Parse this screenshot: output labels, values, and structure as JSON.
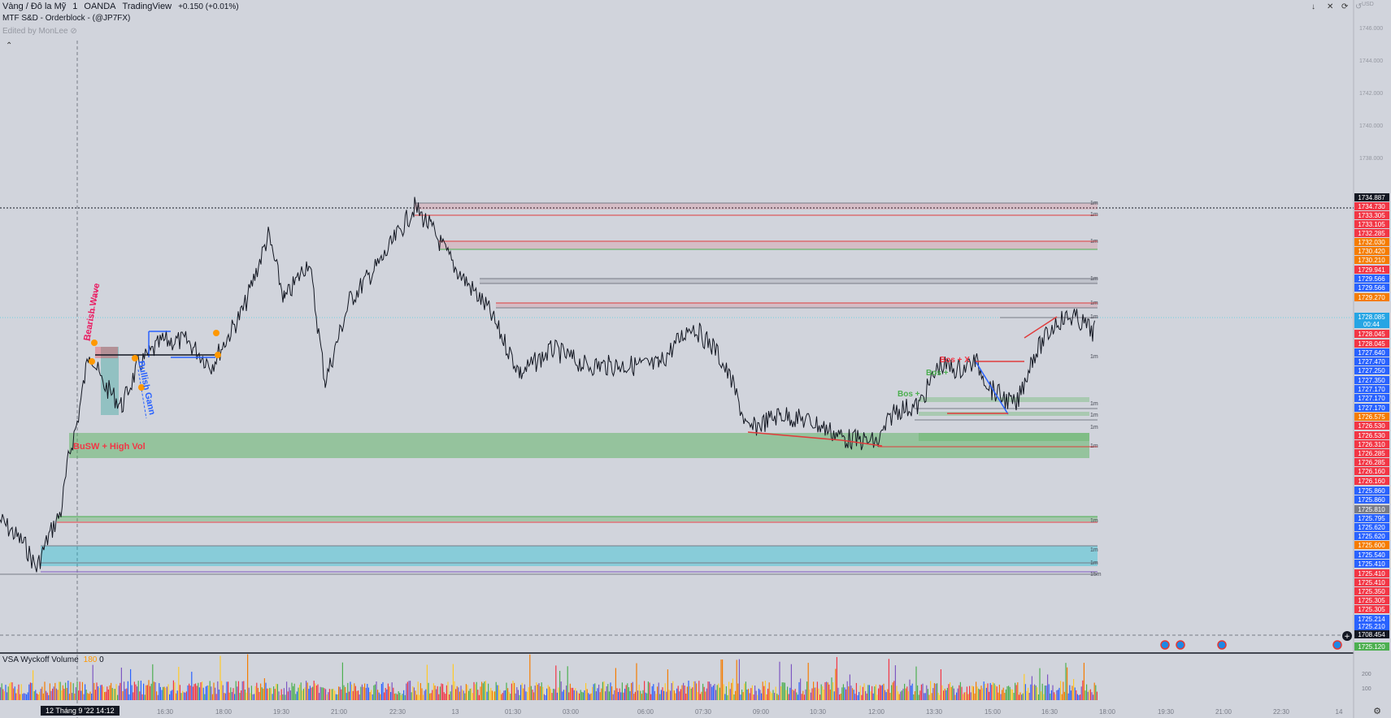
{
  "header": {
    "symbol": "Vàng / Đô la Mỹ",
    "interval": "1",
    "exchange": "OANDA",
    "source": "TradingView",
    "change": "+0.150 (+0.01%)",
    "indicator1": "MTF S&D - Orderblock - (@JP7FX)",
    "indicator2": "Edited by MonLee"
  },
  "window_controls": [
    "↓",
    "✕",
    "⟳",
    "↺"
  ],
  "volume_panel": {
    "title": "VSA Wyckoff Volume",
    "value": "180",
    "extra": "0"
  },
  "date_badge": "12 Tháng 9 '22   14:12",
  "colors": {
    "bg": "#d1d4dc",
    "up": "#26a69a",
    "down": "#ef5350",
    "supply": "#e03c3c",
    "demand": "#4caf50",
    "blue": "#2962ff",
    "orange": "#f57c00",
    "cyan": "#00bcd4"
  },
  "chart_data": {
    "type": "line",
    "title": "",
    "price_axis": {
      "ticks": [
        "1746.000",
        "1744.000",
        "1742.000",
        "1740.000",
        "1738.000"
      ],
      "top_label": "USD"
    },
    "time_axis": {
      "ticks": [
        "16:30",
        "18:00",
        "19:30",
        "21:00",
        "22:30",
        "13",
        "01:30",
        "03:00",
        "06:00",
        "07:30",
        "09:00",
        "10:30",
        "12:00",
        "13:30",
        "15:00",
        "16:30",
        "18:00",
        "19:30",
        "21:00",
        "22:30",
        "14"
      ]
    },
    "price_labels": [
      {
        "text": "1734.887",
        "color": "#131722"
      },
      {
        "text": "1734.730",
        "color": "#f23645"
      },
      {
        "text": "1733.305",
        "color": "#f23645"
      },
      {
        "text": "1733.105",
        "color": "#f23645"
      },
      {
        "text": "1732.285",
        "color": "#f23645"
      },
      {
        "text": "1732.030",
        "color": "#f57c00"
      },
      {
        "text": "1730.420",
        "color": "#f57c00"
      },
      {
        "text": "1730.210",
        "color": "#f57c00"
      },
      {
        "text": "1729.941",
        "color": "#f23645"
      },
      {
        "text": "1729.566",
        "color": "#2962ff"
      },
      {
        "text": "1729.566",
        "color": "#2962ff"
      },
      {
        "text": "1729.270",
        "color": "#f57c00"
      },
      {
        "text": "1728.085",
        "color": "#26a5e4"
      },
      {
        "text": "00:44",
        "color": "#26a5e4"
      },
      {
        "text": "1728.045",
        "color": "#f23645"
      },
      {
        "text": "1728.045",
        "color": "#f23645"
      },
      {
        "text": "1727.640",
        "color": "#2962ff"
      },
      {
        "text": "1727.470",
        "color": "#2962ff"
      },
      {
        "text": "1727.250",
        "color": "#2962ff"
      },
      {
        "text": "1727.350",
        "color": "#2962ff"
      },
      {
        "text": "1727.170",
        "color": "#2962ff"
      },
      {
        "text": "1727.170",
        "color": "#2962ff"
      },
      {
        "text": "1727.170",
        "color": "#2962ff"
      },
      {
        "text": "1726.575",
        "color": "#f57c00"
      },
      {
        "text": "1726.530",
        "color": "#f23645"
      },
      {
        "text": "1726.530",
        "color": "#f23645"
      },
      {
        "text": "1726.310",
        "color": "#f23645"
      },
      {
        "text": "1726.285",
        "color": "#f23645"
      },
      {
        "text": "1726.285",
        "color": "#f23645"
      },
      {
        "text": "1726.160",
        "color": "#f23645"
      },
      {
        "text": "1726.160",
        "color": "#f23645"
      },
      {
        "text": "1725.860",
        "color": "#2962ff"
      },
      {
        "text": "1725.860",
        "color": "#2962ff"
      },
      {
        "text": "1725.810",
        "color": "#787b86"
      },
      {
        "text": "1725.795",
        "color": "#2962ff"
      },
      {
        "text": "1725.620",
        "color": "#2962ff"
      },
      {
        "text": "1725.620",
        "color": "#2962ff"
      },
      {
        "text": "1725.600",
        "color": "#f57c00"
      },
      {
        "text": "1725.540",
        "color": "#2962ff"
      },
      {
        "text": "1725.410",
        "color": "#2962ff"
      },
      {
        "text": "1725.410",
        "color": "#f23645"
      },
      {
        "text": "1725.410",
        "color": "#f23645"
      },
      {
        "text": "1725.350",
        "color": "#f23645"
      },
      {
        "text": "1725.305",
        "color": "#f23645"
      },
      {
        "text": "1725.305",
        "color": "#f23645"
      },
      {
        "text": "1725.214",
        "color": "#2962ff"
      },
      {
        "text": "1725.210",
        "color": "#2962ff"
      },
      {
        "text": "1708.454",
        "color": "#131722"
      },
      {
        "text": "1725.120",
        "color": "#4caf50"
      }
    ],
    "annotations": [
      {
        "text": "Bearish Wave",
        "color": "#e91e63"
      },
      {
        "text": "Bullish Gann",
        "color": "#2962ff"
      },
      {
        "text": "BuSW + High Vol",
        "color": "#f23645"
      },
      {
        "text": "Bos + X",
        "color": "#f23645"
      },
      {
        "text": "Bos +",
        "color": "#4caf50"
      },
      {
        "text": "Bos +",
        "color": "#4caf50"
      }
    ],
    "zone_labels": [
      "1m",
      "1m",
      "1m",
      "1m",
      "1m",
      "1m",
      "1m",
      "1m",
      "1m",
      "1m",
      "1m",
      "1m",
      "1m",
      "1m",
      "15m"
    ],
    "volume_axis": [
      "200",
      "100"
    ],
    "legend": "none",
    "grid": false
  }
}
